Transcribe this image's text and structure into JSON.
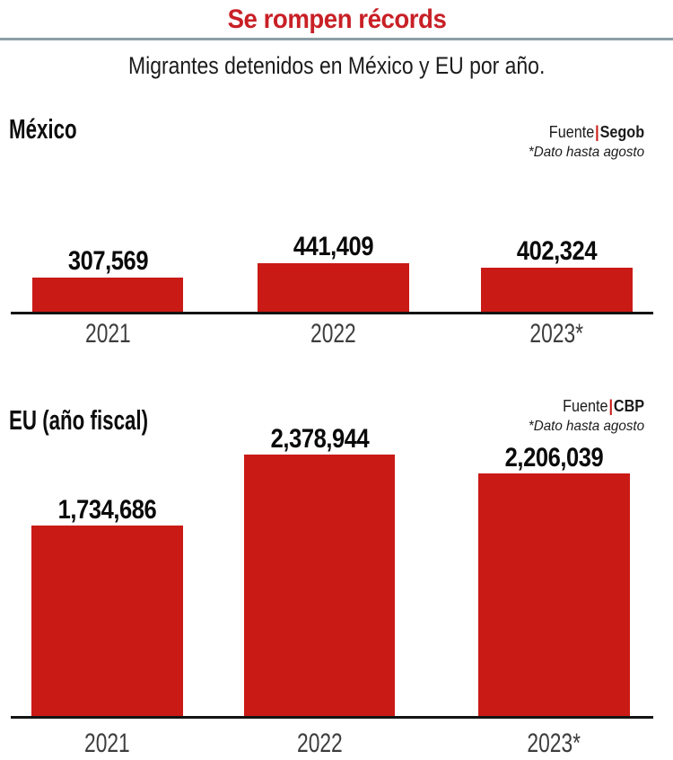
{
  "header": {
    "title": "Se rompen récords",
    "subtitle": "Migrantes detenidos en México y EU por año."
  },
  "colors": {
    "bar_red": "#ca1a16",
    "title_red": "#c82026",
    "divider_gray": "#8c9ea6",
    "axis_black": "#141414",
    "year_label_gray": "#3d3d3d"
  },
  "chart_data": [
    {
      "type": "bar",
      "title": "México",
      "source_prefix": "Fuente",
      "source_separator": "|",
      "source": "Segob",
      "note": "*Dato hasta agosto",
      "categories": [
        "2021",
        "2022",
        "2023*"
      ],
      "values": [
        307569,
        441409,
        402324
      ],
      "value_labels": [
        "307,569",
        "441,409",
        "402,324"
      ],
      "ylim": [
        0,
        441409
      ],
      "grid": false,
      "legend": false
    },
    {
      "type": "bar",
      "title": "EU (año fiscal)",
      "source_prefix": "Fuente",
      "source_separator": "|",
      "source": "CBP",
      "note": "*Dato hasta agosto",
      "categories": [
        "2021",
        "2022",
        "2023*"
      ],
      "values": [
        1734686,
        2378944,
        2206039
      ],
      "value_labels": [
        "1,734,686",
        "2,378,944",
        "2,206,039"
      ],
      "ylim": [
        0,
        2378944
      ],
      "grid": false,
      "legend": false
    }
  ]
}
